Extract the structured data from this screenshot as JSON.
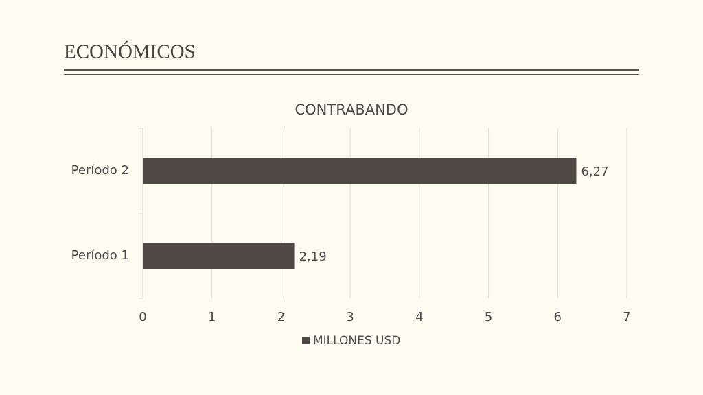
{
  "header": {
    "title": "ECONÓMICOS"
  },
  "chart_data": {
    "type": "bar",
    "orientation": "horizontal",
    "title": "CONTRABANDO",
    "categories": [
      "Período 1",
      "Período 2"
    ],
    "series": [
      {
        "name": "MILLONES USD",
        "color": "#504844",
        "values": [
          2.19,
          6.27
        ],
        "value_labels": [
          "2,19",
          "6,27"
        ]
      }
    ],
    "xlim": [
      0,
      7
    ],
    "xticks": [
      0,
      1,
      2,
      3,
      4,
      5,
      6,
      7
    ],
    "grid": true,
    "legend": "bottom"
  }
}
